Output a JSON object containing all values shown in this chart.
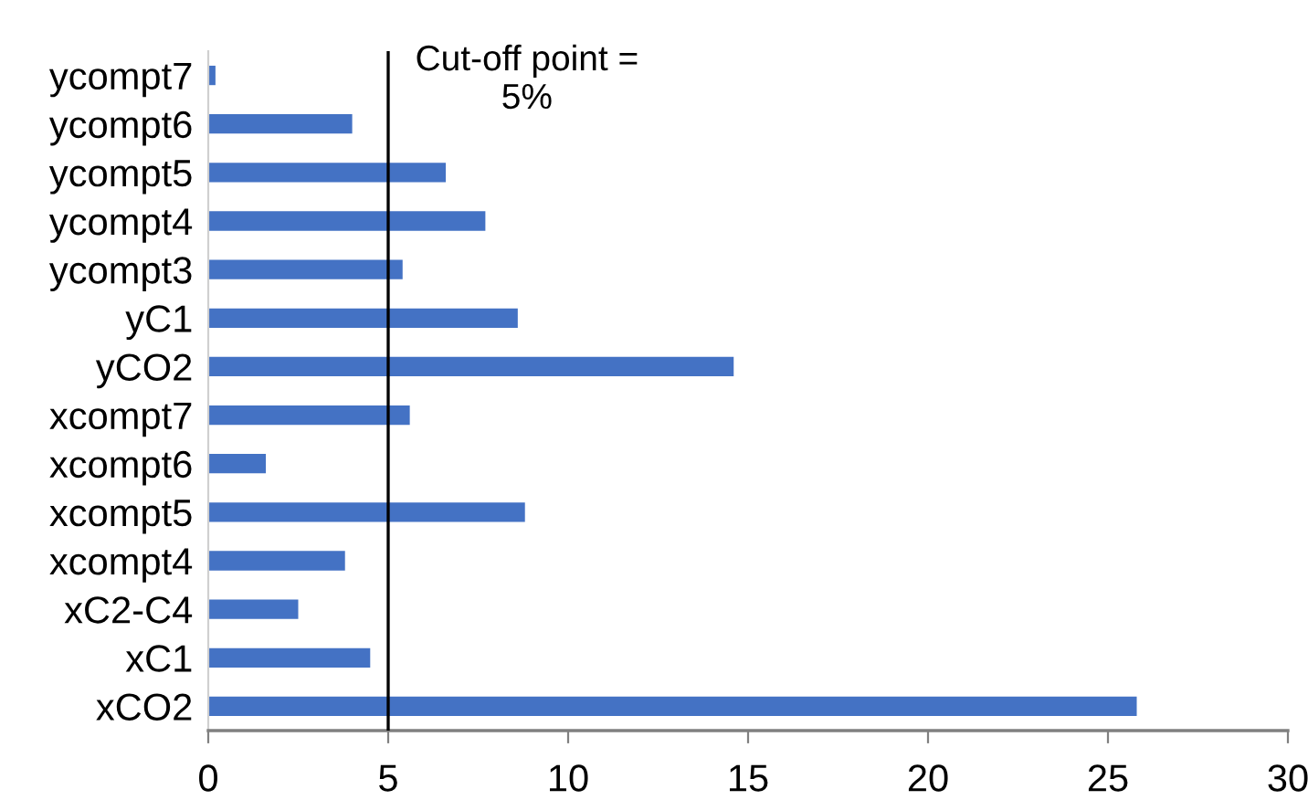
{
  "chart_data": {
    "type": "bar",
    "orientation": "horizontal",
    "categories": [
      "ycompt7",
      "ycompt6",
      "ycompt5",
      "ycompt4",
      "ycompt3",
      "yC1",
      "yCO2",
      "xcompt7",
      "xcompt6",
      "xcompt5",
      "xcompt4",
      "xC2-C4",
      "xC1",
      "xCO2"
    ],
    "values": [
      0.2,
      4.0,
      6.6,
      7.7,
      5.4,
      8.6,
      14.6,
      5.6,
      1.6,
      8.8,
      3.8,
      2.5,
      4.5,
      25.8
    ],
    "color": "#4472c4",
    "xlim": [
      0,
      30
    ],
    "xticks": [
      0,
      5,
      10,
      15,
      20,
      25,
      30
    ],
    "ref_lines": [
      {
        "axis": "x",
        "value": 5,
        "label": "Cut-off point =\n5%",
        "color": "#000000"
      }
    ],
    "grid": false,
    "legend": false
  }
}
